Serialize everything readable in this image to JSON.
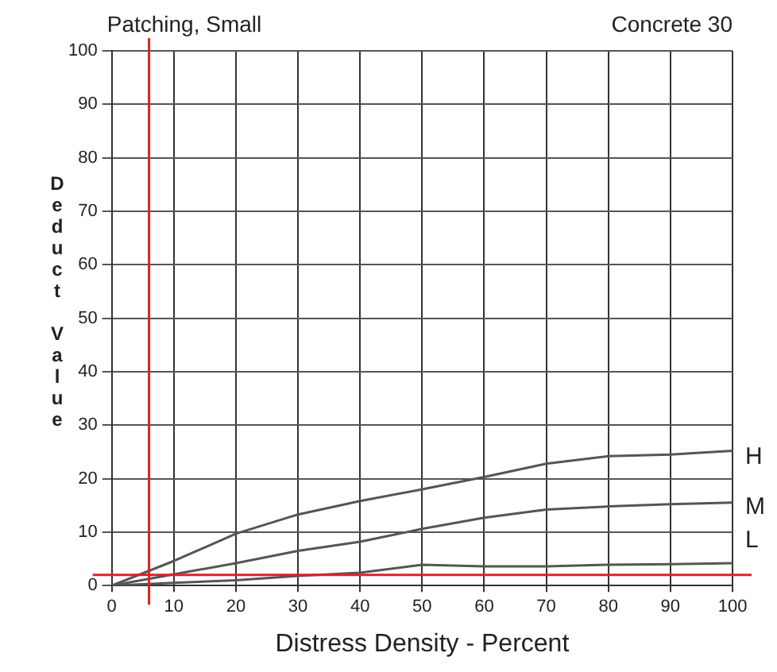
{
  "chart_data": {
    "type": "line",
    "title": "Patching, Small",
    "subtitle": "Concrete 30",
    "xlabel": "Distress Density - Percent",
    "ylabel": "Deduct Value",
    "x": [
      0,
      10,
      20,
      30,
      40,
      50,
      60,
      70,
      80,
      90,
      100
    ],
    "series": [
      {
        "name": "H",
        "color": "#555555",
        "values": [
          0,
          4.6,
          9.7,
          13.3,
          15.8,
          18,
          20.3,
          22.8,
          24.2,
          24.5,
          25.2
        ]
      },
      {
        "name": "M",
        "color": "#555555",
        "values": [
          0,
          2.1,
          4.2,
          6.5,
          8.2,
          10.6,
          12.7,
          14.2,
          14.8,
          15.2,
          15.5
        ]
      },
      {
        "name": "L",
        "color": "#555555",
        "values": [
          0,
          0.5,
          1,
          1.8,
          2.4,
          3.9,
          3.6,
          3.6,
          3.9,
          4,
          4.2
        ]
      }
    ],
    "xlim": [
      0,
      100
    ],
    "xticks": [
      0,
      10,
      20,
      30,
      40,
      50,
      60,
      70,
      80,
      90,
      100
    ],
    "ylim": [
      0,
      100
    ],
    "yticks": [
      0,
      10,
      20,
      30,
      40,
      50,
      60,
      70,
      80,
      90,
      100
    ],
    "grid": true,
    "legend": false,
    "marker": "none",
    "line_style": "solid",
    "ref_lines": [
      {
        "axis": "x",
        "value": 6,
        "color": "#e02020"
      },
      {
        "axis": "y",
        "value": 2,
        "color": "#e02020"
      }
    ]
  }
}
